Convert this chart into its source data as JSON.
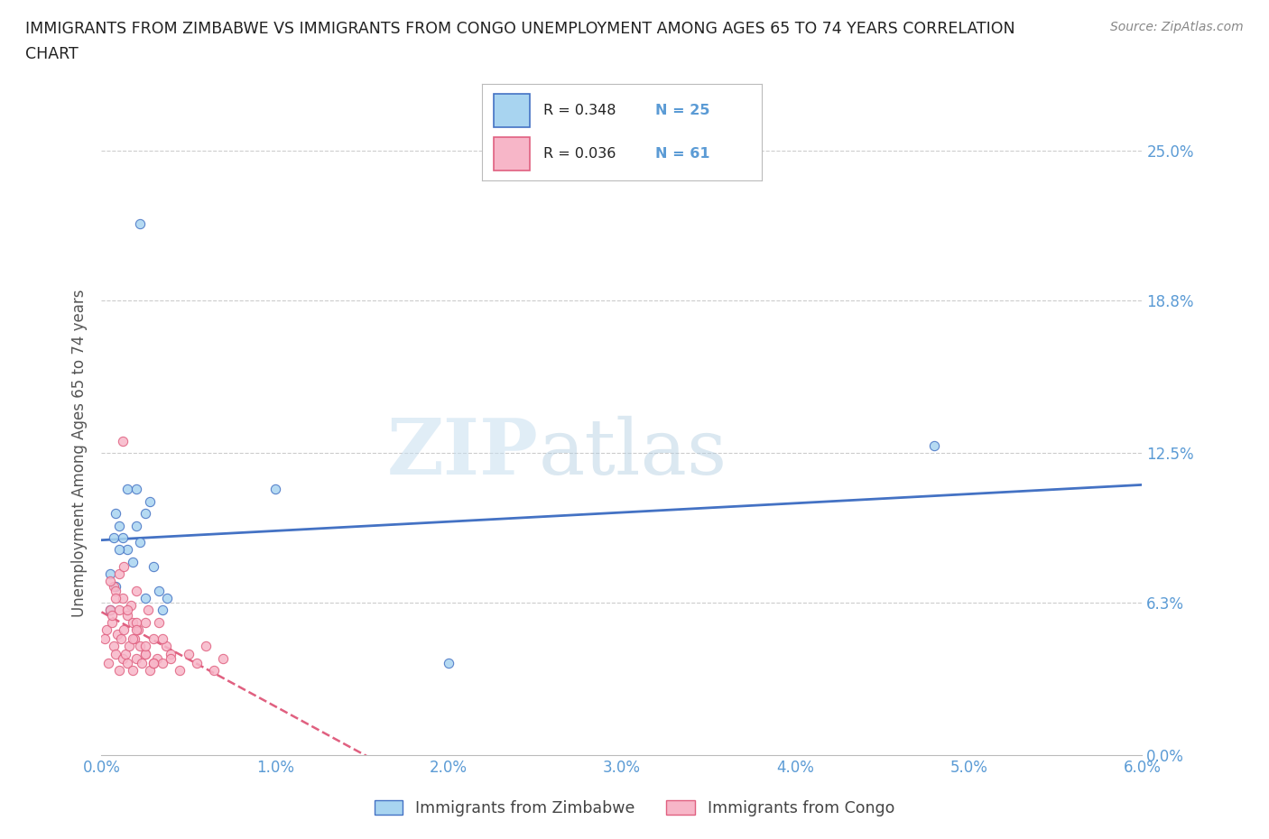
{
  "title_line1": "IMMIGRANTS FROM ZIMBABWE VS IMMIGRANTS FROM CONGO UNEMPLOYMENT AMONG AGES 65 TO 74 YEARS CORRELATION",
  "title_line2": "CHART",
  "source": "Source: ZipAtlas.com",
  "ylabel": "Unemployment Among Ages 65 to 74 years",
  "xlim": [
    0.0,
    0.06
  ],
  "ylim": [
    0.0,
    0.25
  ],
  "ytick_vals": [
    0.0,
    0.063,
    0.125,
    0.188,
    0.25
  ],
  "ytick_labels": [
    "0.0%",
    "6.3%",
    "12.5%",
    "18.8%",
    "25.0%"
  ],
  "xtick_vals": [
    0.0,
    0.01,
    0.02,
    0.03,
    0.04,
    0.05,
    0.06
  ],
  "xtick_labels": [
    "0.0%",
    "1.0%",
    "2.0%",
    "3.0%",
    "4.0%",
    "5.0%",
    "6.0%"
  ],
  "watermark_zip": "ZIP",
  "watermark_atlas": "atlas",
  "legend_label1": "Immigrants from Zimbabwe",
  "legend_label2": "Immigrants from Congo",
  "color_zimbabwe": "#a8d4f0",
  "color_congo": "#f7b6c8",
  "color_line_zimbabwe": "#4472c4",
  "color_line_congo": "#e06080",
  "background_color": "#ffffff",
  "grid_color": "#cccccc",
  "tick_color": "#5b9bd5",
  "zimbabwe_x": [
    0.0022,
    0.0005,
    0.0007,
    0.0008,
    0.001,
    0.0012,
    0.0015,
    0.0018,
    0.002,
    0.0022,
    0.0025,
    0.0028,
    0.003,
    0.0033,
    0.0035,
    0.0038,
    0.0005,
    0.0008,
    0.001,
    0.0015,
    0.002,
    0.0025,
    0.048,
    0.02,
    0.01
  ],
  "zimbabwe_y": [
    0.22,
    0.075,
    0.09,
    0.1,
    0.095,
    0.09,
    0.085,
    0.08,
    0.095,
    0.088,
    0.1,
    0.105,
    0.078,
    0.068,
    0.06,
    0.065,
    0.06,
    0.07,
    0.085,
    0.11,
    0.11,
    0.065,
    0.128,
    0.038,
    0.11
  ],
  "congo_x": [
    0.0002,
    0.0003,
    0.0004,
    0.0005,
    0.0006,
    0.0007,
    0.0007,
    0.0008,
    0.0008,
    0.0009,
    0.001,
    0.001,
    0.001,
    0.0011,
    0.0012,
    0.0012,
    0.0013,
    0.0013,
    0.0014,
    0.0015,
    0.0015,
    0.0016,
    0.0017,
    0.0018,
    0.0018,
    0.0019,
    0.002,
    0.002,
    0.0021,
    0.0022,
    0.0023,
    0.0025,
    0.0025,
    0.0027,
    0.0028,
    0.003,
    0.0032,
    0.0033,
    0.0035,
    0.0037,
    0.004,
    0.0005,
    0.0006,
    0.0008,
    0.0012,
    0.0015,
    0.0018,
    0.002,
    0.0025,
    0.003,
    0.002,
    0.0025,
    0.003,
    0.0035,
    0.004,
    0.0045,
    0.005,
    0.0055,
    0.006,
    0.0065,
    0.007
  ],
  "congo_y": [
    0.048,
    0.052,
    0.038,
    0.06,
    0.055,
    0.045,
    0.07,
    0.042,
    0.068,
    0.05,
    0.035,
    0.06,
    0.075,
    0.048,
    0.04,
    0.065,
    0.052,
    0.078,
    0.042,
    0.038,
    0.058,
    0.045,
    0.062,
    0.035,
    0.055,
    0.048,
    0.04,
    0.068,
    0.052,
    0.045,
    0.038,
    0.055,
    0.042,
    0.06,
    0.035,
    0.048,
    0.04,
    0.055,
    0.038,
    0.045,
    0.042,
    0.072,
    0.058,
    0.065,
    0.13,
    0.06,
    0.048,
    0.055,
    0.042,
    0.038,
    0.052,
    0.045,
    0.038,
    0.048,
    0.04,
    0.035,
    0.042,
    0.038,
    0.045,
    0.035,
    0.04
  ]
}
